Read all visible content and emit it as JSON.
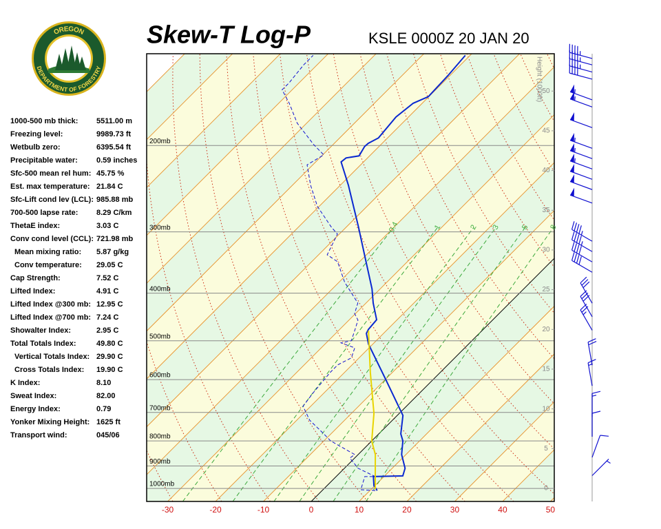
{
  "header": {
    "logo_top": "OREGON",
    "logo_bottom": "DEPARTMENT OF FORESTRY"
  },
  "indices": [
    [
      "1000-500 mb thick:",
      "5511.00 m"
    ],
    [
      "Freezing level:",
      "9989.73 ft"
    ],
    [
      "Wetbulb zero:",
      "6395.54 ft"
    ],
    [
      "Precipitable water:",
      "0.59 inches"
    ],
    [
      "Sfc-500 mean rel hum:",
      "45.75 %"
    ],
    [
      "Est. max temperature:",
      "21.84 C"
    ],
    [
      "Sfc-Lift cond lev (LCL):",
      "985.88 mb"
    ],
    [
      "700-500 lapse rate:",
      "8.29 C/km"
    ],
    [
      "ThetaE index:",
      "3.03 C"
    ],
    [
      "Conv cond level (CCL):",
      "721.98 mb"
    ],
    [
      "Mean mixing ratio:",
      "5.87 g/kg"
    ],
    [
      "Conv temperature:",
      "29.05 C"
    ],
    [
      "Cap Strength:",
      "7.52 C"
    ],
    [
      "Lifted Index:",
      "4.91 C"
    ],
    [
      "Lifted Index @300 mb:",
      "12.95 C"
    ],
    [
      "Lifted Index @700 mb:",
      "7.24 C"
    ],
    [
      "Showalter Index:",
      "2.95 C"
    ],
    [
      "Total Totals Index:",
      "49.80 C"
    ],
    [
      "Vertical Totals Index:",
      "29.90 C"
    ],
    [
      "Cross Totals Index:",
      "19.90 C"
    ],
    [
      "K Index:",
      "8.10"
    ],
    [
      "Sweat Index:",
      "82.00"
    ],
    [
      "Energy Index:",
      "0.79"
    ],
    [
      "Yonker Mixing Height:",
      "1625 ft"
    ],
    [
      "Transport wind:",
      "045/06"
    ]
  ],
  "chart_data": {
    "type": "skewt",
    "title": "Skew-T Log-P",
    "subtitle": "KSLE 0000Z 20 JAN 20",
    "xlim": [
      -34.4,
      50.8
    ],
    "xticks": [
      -30,
      -20,
      -10,
      0,
      10,
      20,
      30,
      40,
      50
    ],
    "ylim": [
      1063,
      130
    ],
    "ylog": true,
    "yticks": [
      {
        "value": 1000,
        "label": "1000mb"
      },
      {
        "value": 900,
        "label": "900mb"
      },
      {
        "value": 800,
        "label": "800mb"
      },
      {
        "value": 700,
        "label": "700mb"
      },
      {
        "value": 600,
        "label": "600mb"
      },
      {
        "value": 500,
        "label": "500mb"
      },
      {
        "value": 400,
        "label": "400mb"
      },
      {
        "value": 300,
        "label": "300mb"
      },
      {
        "value": 200,
        "label": "200mb"
      }
    ],
    "y2label": "Height (1000ft)",
    "y2lim": [
      -1.65,
      54.7
    ],
    "y2ticks": [
      0,
      5,
      10,
      15,
      20,
      25,
      30,
      35,
      40,
      45,
      50
    ],
    "mixing_ratios": [
      0.4,
      1,
      2,
      3,
      5,
      8
    ],
    "series": [
      {
        "color": "#0a28d0",
        "style": "solid",
        "values": [
          11.5,
          9.8,
          7.8,
          13.8,
          12.7,
          9.1,
          6.5,
          4.6,
          1.2,
          -10.1,
          -20.9,
          -23.6,
          -24.0,
          -24.3,
          -28.5,
          -31.7,
          -39.6,
          -47.5,
          -58.3,
          -64.7,
          -64.5,
          -62.2,
          -63.0,
          -62.9,
          -61.9,
          -62.6,
          -61.9,
          -60.1,
          -60.4,
          -61.0
        ],
        "pressure": [
          1010,
          987,
          946,
          943,
          910,
          853,
          800,
          774,
          710,
          598,
          508,
          483,
          474,
          453,
          419,
          392,
          339,
          293,
          241,
          216,
          212,
          210,
          201,
          198,
          193,
          175,
          164,
          159,
          144,
          131
        ]
      },
      {
        "color": "#1010d0",
        "style": "dashed",
        "values": [
          11.1,
          7.9,
          6.0,
          8.2,
          2.9,
          -1.0,
          -0.7,
          -8.6,
          -11.5,
          -17.3,
          -21.6,
          -22.3,
          -23.0,
          -23.0,
          -21.6,
          -23.0,
          -26.9,
          -25.2,
          -26.6,
          -28.1,
          -30.2,
          -31.7,
          -38.8,
          -44.6,
          -48.2,
          -50.4,
          -53.2,
          -60.4,
          -66.2,
          -71.2,
          -69.8,
          -74.1,
          -82.0,
          -87.8,
          -92.1,
          -92.1,
          -92.8,
          -92.8
        ],
        "pressure": [
          1010,
          1006,
          946,
          946,
          910,
          867,
          853,
          800,
          774,
          726,
          680,
          638,
          579,
          560,
          542,
          517,
          505,
          500,
          477,
          454,
          440,
          419,
          380,
          345,
          334,
          303,
          293,
          266,
          241,
          219,
          209,
          199,
          180,
          164,
          154,
          149,
          137,
          131
        ]
      },
      {
        "color": "#e8d400",
        "style": "solid",
        "values": [
          10.8,
          3.6,
          0,
          -5.3,
          -14.7,
          -23.7
        ],
        "pressure": [
          1003,
          853,
          800,
          703,
          579,
          477
        ]
      }
    ],
    "winds": {
      "height": [
        54.1,
        53.3,
        52.4,
        51.5,
        48.9,
        48.0,
        45.4,
        42.8,
        41.5,
        40.2,
        38.9,
        37.6,
        35.9,
        31.1,
        29.8,
        28.5,
        27.2,
        23.3,
        21.6,
        19.9,
        15.5,
        12.9,
        9.0,
        6.5,
        3.9,
        1.6
      ],
      "direction": [
        285,
        285,
        285,
        285,
        290,
        290,
        290,
        290,
        290,
        290,
        290,
        290,
        290,
        300,
        300,
        300,
        300,
        330,
        330,
        330,
        350,
        350,
        360,
        360,
        20,
        45
      ],
      "speed": [
        45,
        45,
        45,
        40,
        55,
        55,
        50,
        55,
        55,
        55,
        50,
        50,
        50,
        45,
        45,
        40,
        40,
        30,
        30,
        25,
        20,
        15,
        15,
        10,
        10,
        5
      ],
      "color": "#1010d0"
    }
  }
}
